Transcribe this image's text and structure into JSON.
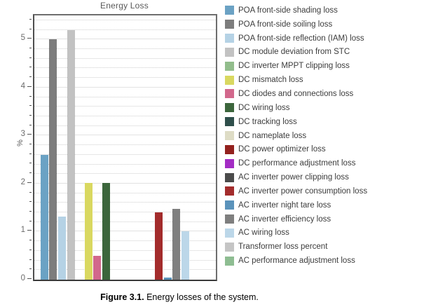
{
  "figure": {
    "title": "Energy Loss",
    "ylabel": "%",
    "caption_bold": "Figure 3.1.",
    "caption_text": " Energy losses of the system."
  },
  "chart_data": {
    "type": "bar",
    "title": "Energy Loss",
    "xlabel": "",
    "ylabel": "%",
    "ylim": [
      0,
      5.5
    ],
    "ytick_step": 1,
    "minor_tick_step": 0.2,
    "grid": true,
    "legend_position": "right",
    "categories": [
      "POA front-side shading loss",
      "POA front-side soiling loss",
      "POA front-side reflection (IAM) loss",
      "DC module deviation from STC",
      "DC inverter MPPT clipping loss",
      "DC mismatch loss",
      "DC diodes and connections loss",
      "DC wiring loss",
      "DC tracking loss",
      "DC nameplate loss",
      "DC power optimizer loss",
      "DC performance adjustment loss",
      "AC inverter power clipping loss",
      "AC inverter power consumption loss",
      "AC inverter night tare loss",
      "AC inverter efficiency loss",
      "AC wiring loss",
      "Transformer loss percent",
      "AC performance adjustment loss"
    ],
    "values": [
      2.6,
      5.0,
      1.31,
      5.19,
      0,
      2.02,
      0.5,
      2.02,
      0,
      0,
      0,
      0,
      0,
      1.4,
      0.04,
      1.47,
      1.01,
      0,
      0
    ],
    "colors": [
      "#6ba2c4",
      "#7d7d7d",
      "#b5d2e5",
      "#c2c2c2",
      "#92bd8c",
      "#d9d860",
      "#d2688c",
      "#3c663c",
      "#2f4f4b",
      "#dedcc5",
      "#93211e",
      "#a32cc4",
      "#4b4b4b",
      "#a32c2c",
      "#5b93bb",
      "#7f7f7f",
      "#bcd7e9",
      "#c5c5c5",
      "#8ebd92"
    ]
  }
}
